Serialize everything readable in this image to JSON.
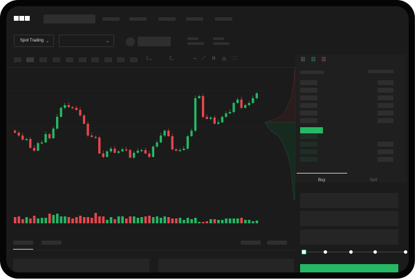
{
  "header": {
    "logo": "OKX"
  },
  "toolbar": {
    "market_type": "Spot Trading",
    "pair_select": ""
  },
  "trade": {
    "tabs": [
      {
        "label": "Buy",
        "active": true
      },
      {
        "label": "Sell",
        "active": false
      }
    ],
    "slider_percent": 0,
    "submit_color": "#25b865"
  },
  "colors": {
    "up": "#25b865",
    "down": "#e5484d",
    "background": "#1b1b1b"
  },
  "chart_data": {
    "type": "candlestick",
    "closes": [
      117,
      113,
      107,
      108,
      95,
      91,
      102,
      103,
      115,
      109,
      123,
      140,
      153,
      157,
      154,
      153,
      150,
      142,
      130,
      113,
      111,
      110,
      87,
      82,
      90,
      94,
      88,
      90,
      93,
      92,
      81,
      88,
      91,
      92,
      87,
      82,
      97,
      103,
      113,
      120,
      112,
      93,
      91,
      92,
      94,
      112,
      120,
      167,
      170,
      140,
      137,
      139,
      130,
      132,
      140,
      145,
      147,
      160,
      165,
      153,
      157,
      160,
      167,
      174
    ],
    "volumes": [
      9,
      10,
      6,
      9,
      7,
      11,
      7,
      8,
      8,
      14,
      12,
      14,
      10,
      10,
      9,
      7,
      9,
      11,
      9,
      9,
      8,
      15,
      10,
      10,
      5,
      9,
      6,
      10,
      10,
      7,
      10,
      10,
      8,
      9,
      10,
      11,
      9,
      10,
      8,
      10,
      9,
      7,
      7,
      8,
      5,
      8,
      6,
      8,
      2,
      2,
      3,
      6,
      6,
      5,
      5,
      7,
      7,
      7,
      7,
      8,
      5,
      5,
      3,
      4
    ],
    "open_first": 120
  }
}
